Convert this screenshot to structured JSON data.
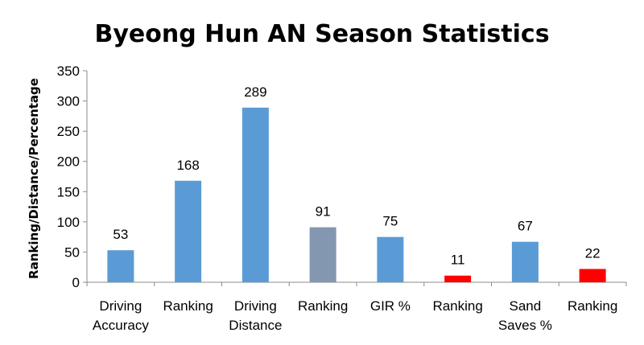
{
  "chart_data": {
    "type": "bar",
    "title": "Byeong Hun AN Season Statistics",
    "xlabel": "",
    "ylabel": "Ranking/Distance/Percentage",
    "ylim": [
      0,
      350
    ],
    "yticks": [
      0,
      50,
      100,
      150,
      200,
      250,
      300,
      350
    ],
    "grid": false,
    "legend": "none",
    "categories": [
      [
        "Driving",
        "Accuracy"
      ],
      [
        "Ranking"
      ],
      [
        "Driving",
        "Distance"
      ],
      [
        "Ranking"
      ],
      [
        "GIR %"
      ],
      [
        "Ranking"
      ],
      [
        "Sand",
        "Saves %"
      ],
      [
        "Ranking"
      ]
    ],
    "values": [
      53,
      168,
      289,
      91,
      75,
      11,
      67,
      22
    ],
    "bar_colors": [
      "#5b9bd5",
      "#5b9bd5",
      "#5b9bd5",
      "#8497b0",
      "#5b9bd5",
      "#ff0000",
      "#5b9bd5",
      "#ff0000"
    ]
  }
}
